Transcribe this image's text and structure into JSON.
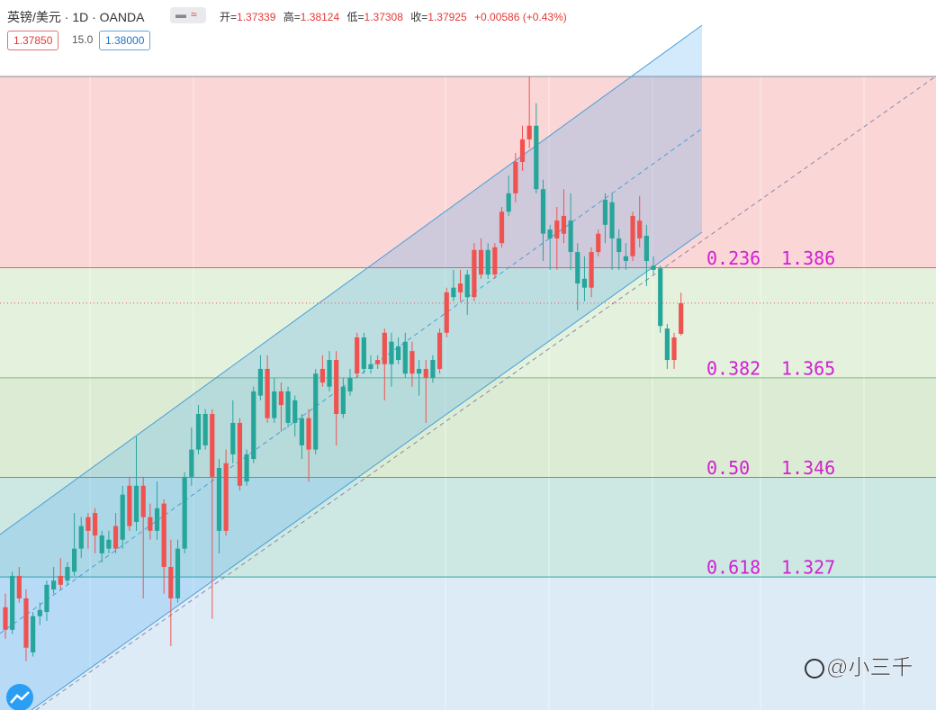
{
  "header": {
    "symbol": "英镑/美元 · 1D · OANDA",
    "open_label": "开=",
    "high_label": "高=",
    "low_label": "低=",
    "close_label": "收=",
    "change": "+0.00586 (+0.43%)",
    "sell": "1.37850",
    "spread": "15.0",
    "buy": "1.38000"
  },
  "watermark": "@小三千",
  "chart_data": {
    "type": "candlestick",
    "ylim": [
      1.3016,
      1.4371
    ],
    "up_color": "#ef5350",
    "down_color": "#26a69a",
    "open": [
      1.3169,
      1.3272,
      1.3229,
      1.3135,
      1.3195,
      1.3207,
      1.3255,
      1.3263,
      1.3255,
      1.3289,
      1.3324,
      1.3367,
      1.3358,
      1.3349,
      1.3349,
      1.3341,
      1.3324,
      1.3427,
      1.3367,
      1.3444,
      1.3384,
      1.3358,
      1.3401,
      1.3289,
      1.3229,
      1.3324,
      1.3461,
      1.3513,
      1.3581,
      1.3581,
      1.3461,
      1.3478,
      1.3358,
      1.3564,
      1.3444,
      1.3504,
      1.3624,
      1.3667,
      1.3573,
      1.3624,
      1.3598,
      1.3624,
      1.3607,
      1.3573,
      1.3513,
      1.3658,
      1.3641,
      1.3684,
      1.3581,
      1.3633,
      1.365,
      1.3658,
      1.3727,
      1.3676,
      1.3676,
      1.3676,
      1.3719,
      1.371,
      1.3719,
      1.3658,
      1.3667,
      1.365,
      1.3684,
      1.3667,
      1.3736,
      1.3822,
      1.3813,
      1.3847,
      1.3804,
      1.3847,
      1.3894,
      1.3847,
      1.3907,
      1.4002,
      1.4002,
      1.4062,
      1.4105,
      1.4131,
      1.401,
      1.3933,
      1.3916,
      1.3925,
      1.395,
      1.389,
      1.3839,
      1.3822,
      1.389,
      1.399,
      1.3985,
      1.3916,
      1.3882,
      1.3882,
      1.3916,
      1.3921,
      1.3864,
      1.3859,
      1.3744,
      1.3684,
      1.37339
    ],
    "high": [
      1.3238,
      1.328,
      1.3289,
      1.3246,
      1.3203,
      1.3221,
      1.3263,
      1.3289,
      1.3306,
      1.3298,
      1.3392,
      1.3384,
      1.3392,
      1.3401,
      1.3358,
      1.3358,
      1.3392,
      1.3444,
      1.3461,
      1.3538,
      1.3461,
      1.341,
      1.3452,
      1.3418,
      1.3341,
      1.3341,
      1.347,
      1.3555,
      1.3598,
      1.359,
      1.359,
      1.3495,
      1.3513,
      1.3607,
      1.3573,
      1.3513,
      1.3633,
      1.3693,
      1.3693,
      1.365,
      1.3641,
      1.3633,
      1.3616,
      1.3581,
      1.359,
      1.3667,
      1.3693,
      1.3701,
      1.3701,
      1.365,
      1.3667,
      1.3736,
      1.3736,
      1.3693,
      1.3693,
      1.3744,
      1.3736,
      1.3727,
      1.3736,
      1.3719,
      1.3684,
      1.3684,
      1.3693,
      1.3744,
      1.3822,
      1.3856,
      1.3856,
      1.3856,
      1.3907,
      1.3916,
      1.3907,
      1.3907,
      1.3976,
      1.4036,
      1.4079,
      1.4131,
      1.4225,
      1.4174,
      1.4028,
      1.3942,
      1.3976,
      1.401,
      1.4002,
      1.3907,
      1.3882,
      1.3899,
      1.3933,
      1.4002,
      1.4002,
      1.3933,
      1.3907,
      1.3967,
      1.3997,
      1.3942,
      1.3882,
      1.3864,
      1.3753,
      1.3736,
      1.38124
    ],
    "low": [
      1.3152,
      1.3161,
      1.3221,
      1.3109,
      1.3118,
      1.3178,
      1.3186,
      1.3238,
      1.3246,
      1.3255,
      1.3272,
      1.3306,
      1.3324,
      1.3315,
      1.3298,
      1.3315,
      1.3315,
      1.3324,
      1.3358,
      1.3358,
      1.3229,
      1.3341,
      1.3341,
      1.3238,
      1.3138,
      1.3221,
      1.3315,
      1.3444,
      1.3504,
      1.3513,
      1.319,
      1.3315,
      1.3349,
      1.3487,
      1.3435,
      1.3444,
      1.3487,
      1.3607,
      1.3564,
      1.3564,
      1.3547,
      1.3555,
      1.3538,
      1.3495,
      1.3452,
      1.3504,
      1.3633,
      1.3624,
      1.3521,
      1.3573,
      1.3616,
      1.365,
      1.3658,
      1.3658,
      1.3667,
      1.3607,
      1.3633,
      1.3676,
      1.365,
      1.3633,
      1.3616,
      1.3564,
      1.3641,
      1.3658,
      1.3727,
      1.3796,
      1.3796,
      1.377,
      1.3796,
      1.3839,
      1.3839,
      1.3839,
      1.3899,
      1.3959,
      1.3985,
      1.4045,
      1.4088,
      1.4002,
      1.3873,
      1.3856,
      1.3856,
      1.3907,
      1.3856,
      1.3779,
      1.3796,
      1.3804,
      1.3882,
      1.3907,
      1.3856,
      1.3856,
      1.3856,
      1.3873,
      1.3899,
      1.3825,
      1.3847,
      1.3736,
      1.3667,
      1.3667,
      1.37308
    ],
    "close": [
      1.3212,
      1.3169,
      1.3272,
      1.3229,
      1.3126,
      1.3195,
      1.3203,
      1.3246,
      1.3272,
      1.3263,
      1.328,
      1.3324,
      1.3384,
      1.3392,
      1.3315,
      1.3324,
      1.3367,
      1.3341,
      1.3444,
      1.3375,
      1.3444,
      1.3384,
      1.3358,
      1.341,
      1.3289,
      1.3229,
      1.3324,
      1.3461,
      1.3513,
      1.3521,
      1.3581,
      1.3358,
      1.3487,
      1.3504,
      1.3564,
      1.3452,
      1.3495,
      1.3616,
      1.3667,
      1.3573,
      1.3624,
      1.3564,
      1.3564,
      1.3521,
      1.3573,
      1.3513,
      1.3667,
      1.3633,
      1.3684,
      1.3581,
      1.3624,
      1.3727,
      1.3667,
      1.3667,
      1.3684,
      1.3736,
      1.3676,
      1.3684,
      1.3658,
      1.3701,
      1.3658,
      1.3667,
      1.365,
      1.3736,
      1.3813,
      1.3804,
      1.383,
      1.3804,
      1.3894,
      1.3894,
      1.3847,
      1.3899,
      1.3967,
      1.3967,
      1.4062,
      1.4105,
      1.4131,
      1.401,
      1.3925,
      1.3916,
      1.395,
      1.3959,
      1.389,
      1.383,
      1.3822,
      1.389,
      1.3925,
      1.3942,
      1.3916,
      1.389,
      1.3873,
      1.3959,
      1.395,
      1.3873,
      1.3856,
      1.3749,
      1.3684,
      1.3727,
      1.37925
    ],
    "fib": {
      "top_fill": "#fbd6d6",
      "below_fill": "#ddebf7",
      "text_color": "#d21fd2",
      "levels": [
        {
          "ratio": 0.236,
          "price": 1.386,
          "color": "#e06666",
          "fill": "#fbd6d6"
        },
        {
          "ratio": 0.382,
          "price": 1.365,
          "color": "#7cbf7c",
          "fill": "#e3f1dd"
        },
        {
          "ratio": {
            "value": 0.5,
            "label": "0.50"
          },
          "price": 1.346,
          "color": "#4caf50",
          "fill": "#dcecd4"
        },
        {
          "ratio": 0.618,
          "price": 1.327,
          "color": "#26a69a",
          "fill": "#cde8e3"
        }
      ]
    }
  }
}
